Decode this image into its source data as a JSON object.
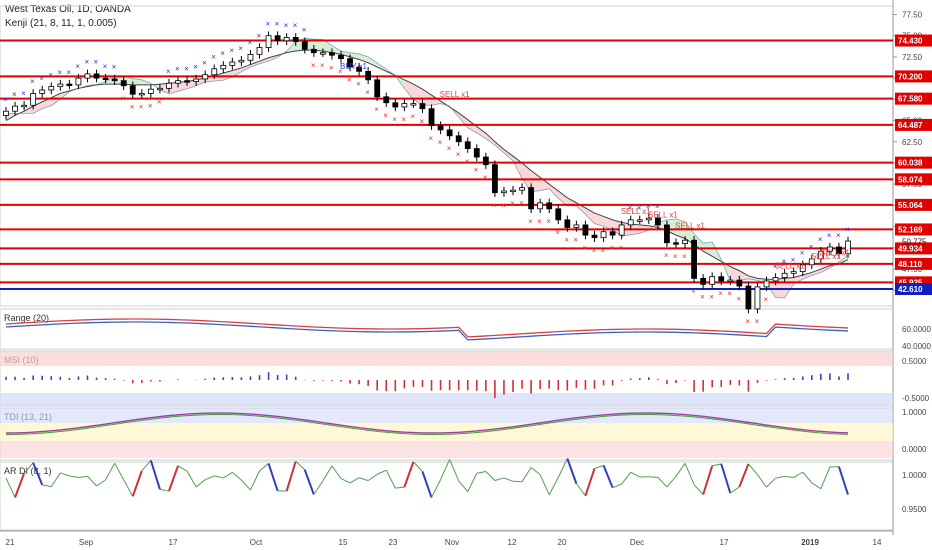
{
  "header": {
    "title": "West Texas Oil, 1D, OANDA",
    "study": "Kenji (21, 8, 11, 1, 0.005)"
  },
  "colors": {
    "level": "#e00000",
    "support": "#1020c0",
    "up": "#ffffff",
    "down": "#000000",
    "cross_red": "#e03030",
    "cross_blue": "#3030d0"
  },
  "chart_data": [
    {
      "type": "candlestick",
      "name": "price",
      "ylim": [
        43.5,
        78.5
      ],
      "yticks": [
        77.5,
        75.0,
        72.5,
        70.0,
        67.5,
        65.0,
        62.5,
        60.0,
        57.5,
        55.0,
        52.5,
        50.0,
        47.5,
        45.0
      ],
      "levels": [
        "74.430",
        "70.200",
        "67.580",
        "64.487",
        "60.038",
        "58.074",
        "55.064",
        "52.169",
        "49.934",
        "48.110",
        "45.935",
        "42.610"
      ],
      "level_colors": [
        "red",
        "red",
        "red",
        "red",
        "red",
        "red",
        "red",
        "red",
        "red",
        "red",
        "red",
        "blue"
      ],
      "current_price": "50.775",
      "annotations": [
        "BUY x1",
        "SELL x1",
        "SELL x1",
        "SELL x1",
        "SELL x1",
        "SELL x1",
        "SELL x1",
        "SELL x1"
      ],
      "close": [
        66.1,
        66.7,
        66.8,
        68.2,
        68.6,
        69.0,
        69.3,
        69.2,
        70.0,
        70.5,
        70.0,
        69.9,
        69.7,
        69.1,
        68.1,
        68.2,
        68.7,
        68.8,
        69.4,
        69.7,
        69.6,
        69.9,
        70.4,
        71.1,
        71.5,
        71.9,
        72.1,
        72.8,
        73.6,
        75.0,
        74.4,
        74.8,
        74.3,
        73.4,
        73.0,
        73.0,
        72.7,
        72.3,
        71.3,
        70.8,
        69.8,
        67.8,
        67.1,
        66.6,
        67.0,
        67.0,
        66.4,
        64.4,
        63.9,
        63.2,
        62.5,
        61.7,
        60.7,
        59.8,
        56.5,
        56.7,
        56.8,
        57.1,
        54.6,
        55.3,
        54.6,
        53.3,
        52.4,
        52.7,
        51.5,
        51.2,
        51.9,
        51.5,
        52.7,
        53.3,
        53.3,
        53.5,
        52.7,
        50.6,
        50.5,
        50.9,
        46.4,
        45.7,
        46.6,
        46.1,
        46.2,
        45.5,
        42.8,
        45.4,
        46.1,
        46.5,
        47.0,
        47.2,
        48.0,
        48.7,
        49.6,
        50.1,
        49.3,
        50.8
      ],
      "open": [
        65.6,
        66.1,
        66.7,
        66.8,
        68.2,
        68.6,
        69.0,
        69.3,
        69.2,
        70.0,
        70.5,
        70.0,
        69.9,
        69.7,
        69.1,
        68.1,
        68.2,
        68.7,
        68.8,
        69.4,
        69.7,
        69.6,
        69.9,
        70.4,
        71.1,
        71.5,
        71.9,
        72.1,
        72.8,
        73.6,
        75.0,
        74.4,
        74.8,
        74.3,
        73.4,
        73.0,
        73.0,
        72.7,
        72.3,
        71.3,
        70.8,
        69.8,
        67.8,
        67.1,
        66.6,
        67.0,
        67.0,
        66.4,
        64.4,
        63.9,
        63.2,
        62.5,
        61.7,
        60.7,
        59.8,
        56.5,
        56.7,
        56.8,
        57.1,
        54.6,
        55.3,
        54.6,
        53.3,
        52.4,
        52.7,
        51.5,
        51.2,
        51.9,
        51.5,
        52.7,
        53.3,
        53.3,
        53.5,
        52.7,
        50.6,
        50.5,
        50.9,
        46.4,
        45.7,
        46.6,
        46.1,
        46.2,
        45.5,
        42.8,
        45.4,
        46.1,
        46.5,
        47.0,
        47.2,
        48.0,
        48.7,
        49.6,
        50.1,
        49.3
      ],
      "ma": [
        65.0,
        65.6,
        66.1,
        66.7,
        67.2,
        67.7,
        68.2,
        68.5,
        68.8,
        69.0,
        69.2,
        69.3,
        69.3,
        69.3,
        69.2,
        69.2,
        69.2,
        69.3,
        69.4,
        69.5,
        69.6,
        69.8,
        70.0,
        70.3,
        70.6,
        70.9,
        71.2,
        71.6,
        72.0,
        72.4,
        72.7,
        73.0,
        73.2,
        73.3,
        73.3,
        73.2,
        73.0,
        72.8,
        72.5,
        72.2,
        71.8,
        71.3,
        70.8,
        70.3,
        69.8,
        69.3,
        68.7,
        68.0,
        67.3,
        66.6,
        65.9,
        65.1,
        64.3,
        63.5,
        62.5,
        61.6,
        60.8,
        60.0,
        59.1,
        58.3,
        57.5,
        56.7,
        55.9,
        55.3,
        54.7,
        54.1,
        53.7,
        53.3,
        53.0,
        52.8,
        52.7,
        52.6,
        52.4,
        52.0,
        51.5,
        51.1,
        50.4,
        49.6,
        49.0,
        48.4,
        47.8,
        47.3,
        46.7,
        46.4,
        46.3,
        46.3,
        46.4,
        46.5,
        46.8,
        47.1,
        47.5,
        47.9,
        48.1,
        48.6
      ]
    },
    {
      "type": "line",
      "name": "Range",
      "label": "Range (20)",
      "yticks": [
        "60.0000",
        "40.0000"
      ]
    },
    {
      "type": "bar",
      "name": "MSI",
      "label": "MSI (10)",
      "yticks": [
        "0.5000",
        "-0.5000"
      ]
    },
    {
      "type": "line",
      "name": "TDI",
      "label": "TDI (13, 21)",
      "yticks": [
        "1.0000",
        "0.0000"
      ]
    },
    {
      "type": "line",
      "name": "AR DI",
      "label": "AR DI (8, 1)",
      "yticks": [
        "1.0000",
        "0.9500"
      ]
    },
    {
      "type": "axis",
      "name": "time",
      "x_ticks": [
        "21",
        "Sep",
        "17",
        "Oct",
        "15",
        "23",
        "Nov",
        "12",
        "20",
        "Dec",
        "17",
        "2019",
        "14"
      ]
    }
  ]
}
